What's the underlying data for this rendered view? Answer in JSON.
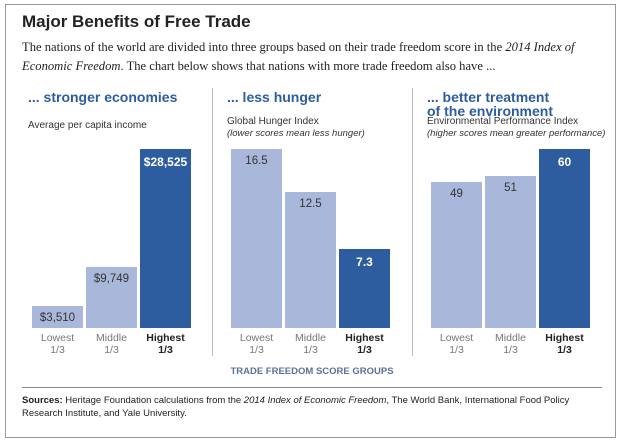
{
  "title": "Major Benefits of Free Trade",
  "subtitle": [
    "The nations of the world are divided into three groups based on their trade freedom score in the ",
    "2014 Index of Economic Freedom",
    ". The chart below shows that nations with more trade freedom also have ..."
  ],
  "xlabel": "TRADE FREEDOM SCORE GROUPS",
  "sources": [
    "Sources:",
    " Heritage Foundation calculations from the ",
    "2014 Index of Economic Freedom",
    ", The World Bank, International Food Policy Research Institute, and Yale University."
  ],
  "chart_data": [
    {
      "type": "bar",
      "title": "... stronger economies",
      "subtitle": "Average per capita income",
      "categories": [
        "Lowest 1/3",
        "Middle 1/3",
        "Highest 1/3"
      ],
      "values": [
        3510,
        9749,
        28525
      ],
      "value_labels": [
        "$3,510",
        "$9,749",
        "$28,525"
      ],
      "colors": [
        "#a9b8da",
        "#a9b8da",
        "#2e5d9f"
      ]
    },
    {
      "type": "bar",
      "title": "... less hunger",
      "subtitle": "Global Hunger Index",
      "note": "(lower scores mean less hunger)",
      "categories": [
        "Lowest 1/3",
        "Middle 1/3",
        "Highest 1/3"
      ],
      "values": [
        16.5,
        12.5,
        7.3
      ],
      "colors": [
        "#a9b8da",
        "#a9b8da",
        "#2e5d9f"
      ]
    },
    {
      "type": "bar",
      "title": "... better treatment\nof the environment",
      "subtitle": "Environmental Performance Index",
      "note": "(higher scores mean greater performance)",
      "categories": [
        "Lowest 1/3",
        "Middle 1/3",
        "Highest 1/3"
      ],
      "values": [
        49,
        51,
        60
      ],
      "colors": [
        "#a9b8da",
        "#a9b8da",
        "#2e5d9f"
      ]
    }
  ]
}
